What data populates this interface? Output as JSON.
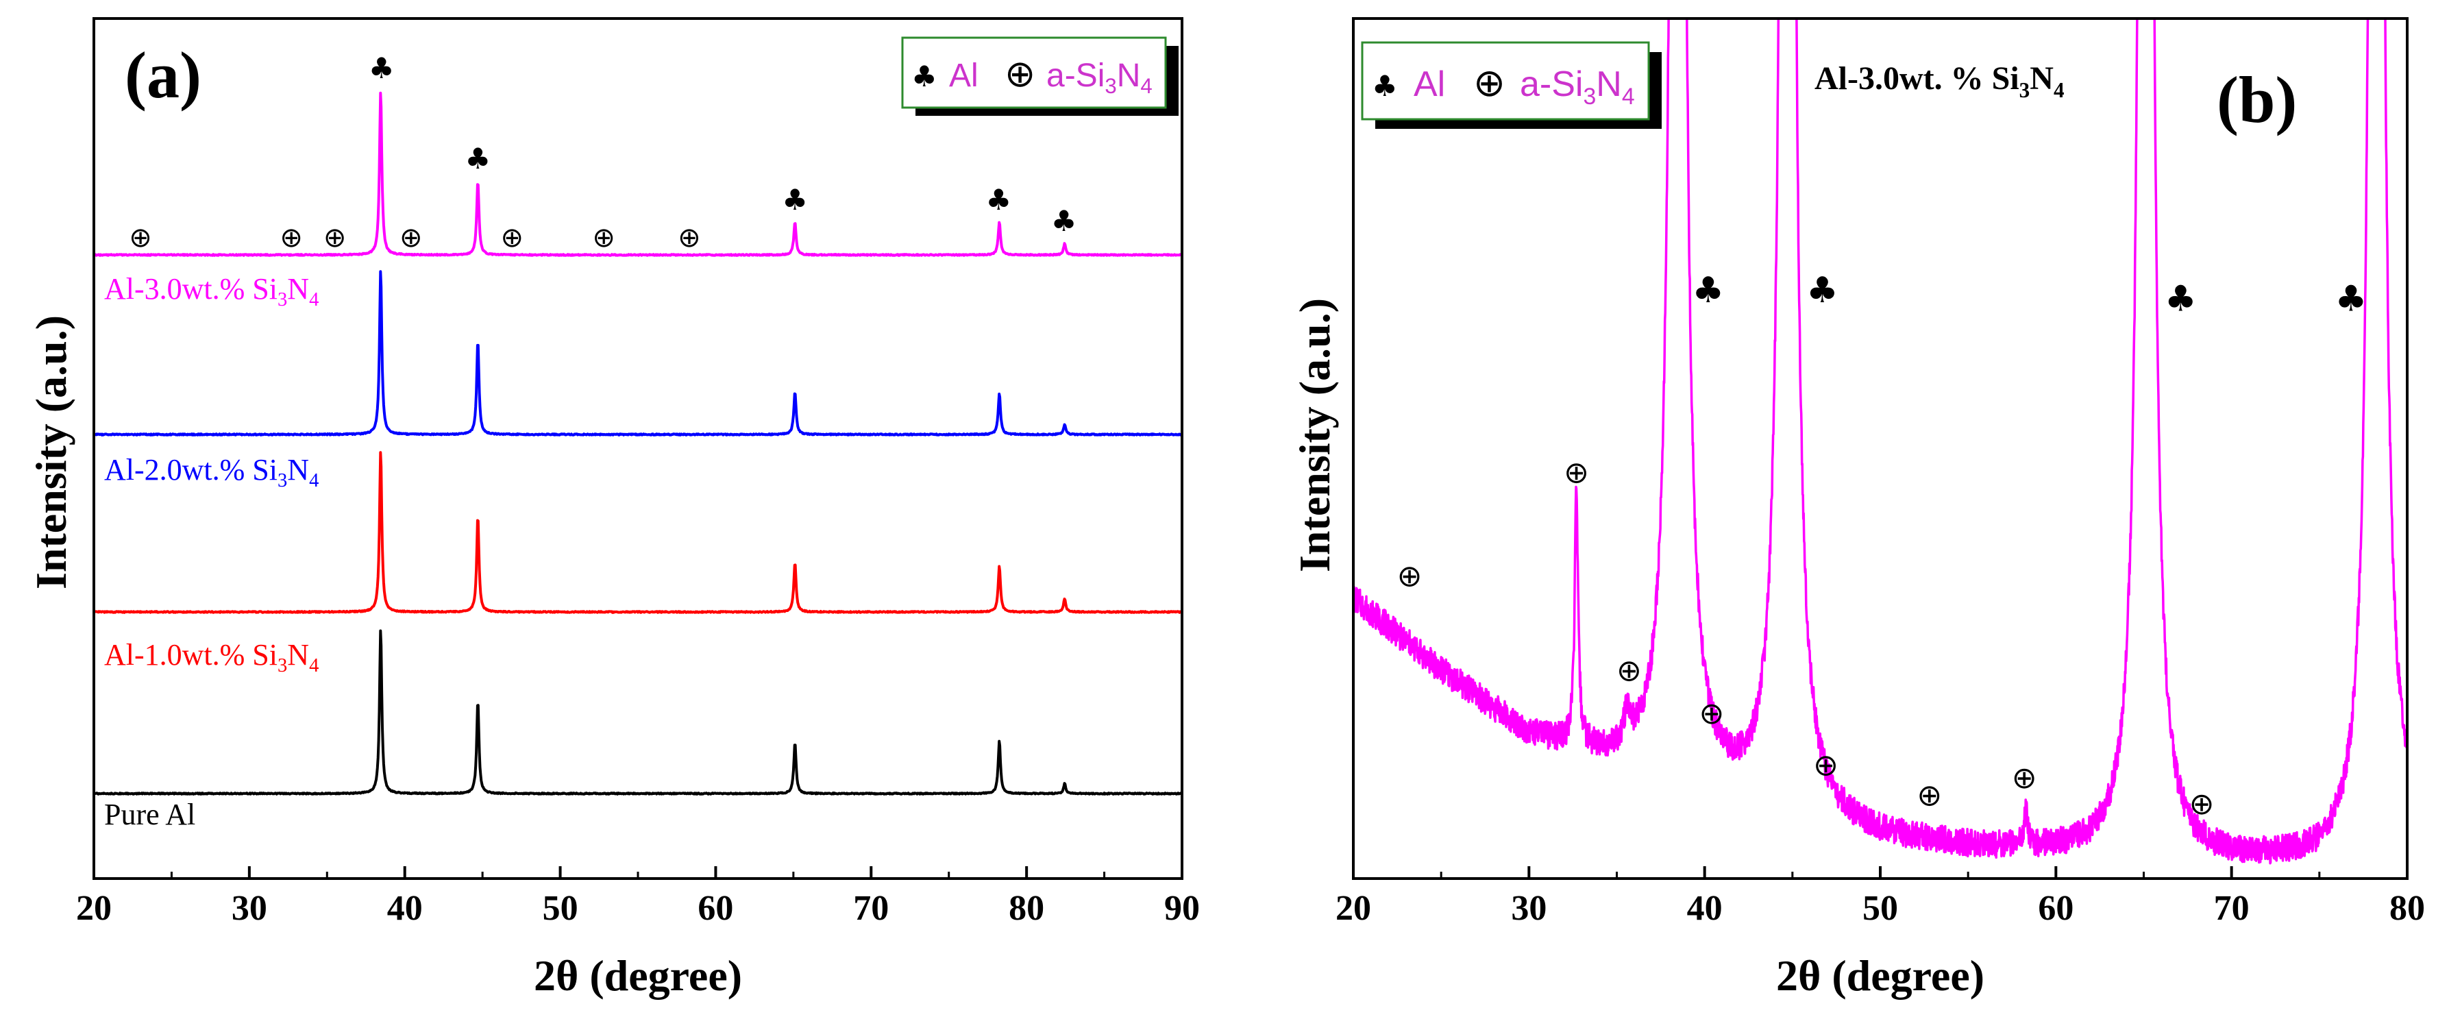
{
  "chart_data": [
    {
      "type": "line",
      "panel_label": "(a)",
      "xlabel": "2θ (degree)",
      "ylabel": "Intensity (a.u.)",
      "xlim": [
        20,
        90
      ],
      "xticks": [
        "20",
        "30",
        "40",
        "50",
        "60",
        "70",
        "80",
        "90"
      ],
      "legend": {
        "position": "top-right",
        "al_symbol": "♣",
        "al_label": "Al",
        "si3n4_symbol": "⊕",
        "si3n4_label_pre": "a-Si",
        "si3n4_sub1": "3",
        "si3n4_label_mid": "N",
        "si3n4_sub2": "4"
      },
      "peak_markers": {
        "al_symbol": "♣",
        "si3n4_symbol": "⊕",
        "al_positions": [
          38.5,
          44.7,
          65.1,
          78.2,
          82.4
        ],
        "si3n4_positions": [
          23.0,
          32.7,
          35.5,
          40.4,
          46.9,
          52.8,
          58.3
        ]
      },
      "series": [
        {
          "name": "Pure Al",
          "label_parts": [
            "Pure Al"
          ],
          "color": "#000000",
          "baseline": 0.0,
          "peaks": [
            [
              38.45,
              1.0
            ],
            [
              44.7,
              0.56
            ],
            [
              65.1,
              0.31
            ],
            [
              78.25,
              0.32
            ],
            [
              82.45,
              0.06
            ]
          ]
        },
        {
          "name": "Al-1.0wt.% Si3N4",
          "label_parts": [
            "Al-1.0wt.% Si",
            "3",
            "N",
            "4"
          ],
          "color": "#ff0000",
          "baseline": 1.0,
          "peaks": [
            [
              38.45,
              0.98
            ],
            [
              44.7,
              0.58
            ],
            [
              65.1,
              0.3
            ],
            [
              78.25,
              0.28
            ],
            [
              82.45,
              0.08
            ]
          ]
        },
        {
          "name": "Al-2.0wt.% Si3N4",
          "label_parts": [
            "Al-2.0wt.% Si",
            "3",
            "N",
            "4"
          ],
          "color": "#0000ff",
          "baseline": 2.0,
          "peaks": [
            [
              38.45,
              1.0
            ],
            [
              44.7,
              0.57
            ],
            [
              65.1,
              0.26
            ],
            [
              78.25,
              0.25
            ],
            [
              82.45,
              0.06
            ]
          ]
        },
        {
          "name": "Al-3.0wt.% Si3N4",
          "label_parts": [
            "Al-3.0wt.% Si",
            "3",
            "N",
            "4"
          ],
          "color": "#ff00ff",
          "baseline": 3.0,
          "peaks": [
            [
              38.45,
              1.0
            ],
            [
              44.7,
              0.45
            ],
            [
              65.1,
              0.2
            ],
            [
              78.25,
              0.2
            ],
            [
              82.45,
              0.07
            ]
          ]
        }
      ]
    },
    {
      "type": "line",
      "panel_label": "(b)",
      "title_pre": "Al-3.0wt. % Si",
      "title_sub1": "3",
      "title_mid": "N",
      "title_sub2": "4",
      "xlabel": "2θ (degree)",
      "ylabel": "Intensity (a.u.)",
      "xlim": [
        20,
        80
      ],
      "ylim": [
        0,
        100
      ],
      "xticks": [
        "20",
        "30",
        "40",
        "50",
        "60",
        "70",
        "80"
      ],
      "legend": {
        "position": "top-left",
        "al_symbol": "♣",
        "al_label": "Al",
        "si3n4_symbol": "⊕",
        "si3n4_label_pre": "a-Si",
        "si3n4_sub1": "3",
        "si3n4_label_mid": "N",
        "si3n4_sub2": "4"
      },
      "series": [
        {
          "name": "Al-3.0wt.% Si3N4",
          "color": "#ff00ff",
          "background": [
            [
              20,
              32.5
            ],
            [
              25,
              24
            ],
            [
              30,
              16.5
            ],
            [
              35,
              13
            ],
            [
              40,
              10
            ],
            [
              45,
              6.8
            ],
            [
              50,
              4.5
            ],
            [
              55,
              3.4
            ],
            [
              60,
              2.8
            ],
            [
              65,
              2.2
            ],
            [
              70,
              1.8
            ],
            [
              75,
              1.8
            ],
            [
              80,
              5
            ]
          ],
          "peaks": [
            [
              32.7,
              29,
              0.12
            ],
            [
              35.6,
              4,
              0.2
            ],
            [
              38.47,
              400,
              0.28
            ],
            [
              44.72,
              400,
              0.28
            ],
            [
              65.12,
              400,
              0.28
            ],
            [
              78.25,
              400,
              0.28
            ],
            [
              58.3,
              4,
              0.12
            ]
          ]
        }
      ],
      "peak_markers": {
        "al_symbol": "♣",
        "si3n4_symbol": "⊕",
        "al": [
          [
            40.2,
            67
          ],
          [
            46.7,
            67
          ],
          [
            67.1,
            66
          ],
          [
            76.8,
            66
          ]
        ],
        "si3n4": [
          [
            23.2,
            34
          ],
          [
            32.7,
            46
          ],
          [
            35.7,
            23
          ],
          [
            40.4,
            18
          ],
          [
            46.9,
            12
          ],
          [
            52.8,
            8.5
          ],
          [
            58.2,
            10.5
          ],
          [
            68.3,
            7.5
          ]
        ]
      }
    }
  ]
}
